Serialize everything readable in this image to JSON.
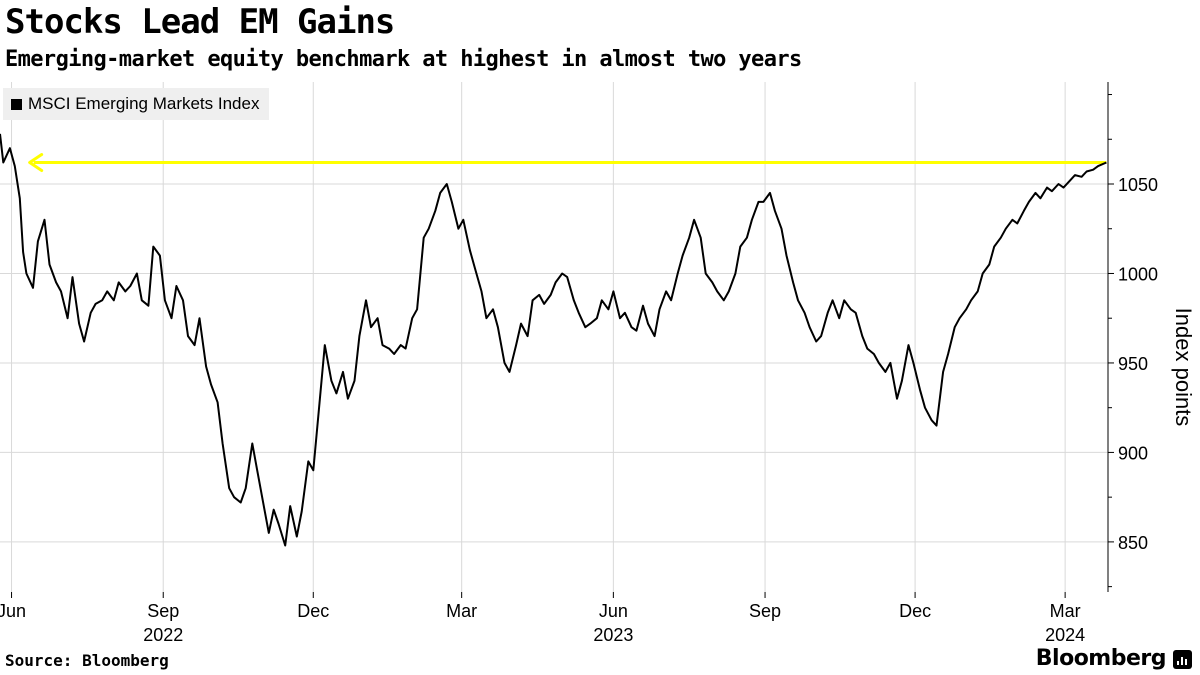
{
  "header": {
    "title": "Stocks Lead EM Gains",
    "subtitle": "Emerging-market equity benchmark at highest in almost two years"
  },
  "footer": {
    "source": "Source: Bloomberg",
    "brand": "Bloomberg"
  },
  "colors": {
    "line": "#000000",
    "annotation": "#ffff00",
    "grid": "#d9d9d9"
  },
  "chart_data": {
    "type": "line",
    "title": "Stocks Lead EM Gains",
    "subtitle": "Emerging-market equity benchmark at highest in almost two years",
    "ylabel": "Index points",
    "xlabel": "",
    "ylim": [
      822,
      1107
    ],
    "yticks": [
      850,
      900,
      950,
      1000,
      1050
    ],
    "x_range": [
      "2022-05-25",
      "2024-03-27"
    ],
    "x_ticks": [
      {
        "date": "2022-06-01",
        "label": "Jun"
      },
      {
        "date": "2022-09-01",
        "label": "Sep"
      },
      {
        "date": "2022-12-01",
        "label": "Dec"
      },
      {
        "date": "2023-03-01",
        "label": "Mar"
      },
      {
        "date": "2023-06-01",
        "label": "Jun"
      },
      {
        "date": "2023-09-01",
        "label": "Sep"
      },
      {
        "date": "2023-12-01",
        "label": "Dec"
      },
      {
        "date": "2024-03-01",
        "label": "Mar"
      }
    ],
    "year_labels": [
      {
        "date": "2022-09-01",
        "label": "2022"
      },
      {
        "date": "2023-06-01",
        "label": "2023"
      },
      {
        "date": "2024-03-01",
        "label": "2024"
      }
    ],
    "legend": [
      "MSCI Emerging Markets Index"
    ],
    "legend_position": "top-left",
    "annotation": {
      "type": "arrow",
      "color": "yellow",
      "value": 1062,
      "direction": "left",
      "from_date": "2024-03-26",
      "to_date": "2022-06-12"
    },
    "series": [
      {
        "name": "MSCI Emerging Markets Index",
        "points": [
          [
            "2022-05-25",
            1078
          ],
          [
            "2022-05-27",
            1062
          ],
          [
            "2022-05-31",
            1070
          ],
          [
            "2022-06-03",
            1060
          ],
          [
            "2022-06-06",
            1042
          ],
          [
            "2022-06-08",
            1012
          ],
          [
            "2022-06-10",
            1000
          ],
          [
            "2022-06-14",
            992
          ],
          [
            "2022-06-17",
            1018
          ],
          [
            "2022-06-21",
            1030
          ],
          [
            "2022-06-24",
            1005
          ],
          [
            "2022-06-28",
            995
          ],
          [
            "2022-07-01",
            990
          ],
          [
            "2022-07-05",
            975
          ],
          [
            "2022-07-08",
            998
          ],
          [
            "2022-07-12",
            972
          ],
          [
            "2022-07-15",
            962
          ],
          [
            "2022-07-19",
            978
          ],
          [
            "2022-07-22",
            983
          ],
          [
            "2022-07-26",
            985
          ],
          [
            "2022-07-29",
            990
          ],
          [
            "2022-08-02",
            985
          ],
          [
            "2022-08-05",
            995
          ],
          [
            "2022-08-09",
            990
          ],
          [
            "2022-08-12",
            993
          ],
          [
            "2022-08-16",
            1000
          ],
          [
            "2022-08-19",
            985
          ],
          [
            "2022-08-23",
            982
          ],
          [
            "2022-08-26",
            1015
          ],
          [
            "2022-08-30",
            1010
          ],
          [
            "2022-09-02",
            985
          ],
          [
            "2022-09-06",
            975
          ],
          [
            "2022-09-09",
            993
          ],
          [
            "2022-09-13",
            985
          ],
          [
            "2022-09-16",
            965
          ],
          [
            "2022-09-20",
            960
          ],
          [
            "2022-09-23",
            975
          ],
          [
            "2022-09-27",
            948
          ],
          [
            "2022-09-30",
            938
          ],
          [
            "2022-10-04",
            928
          ],
          [
            "2022-10-07",
            905
          ],
          [
            "2022-10-11",
            880
          ],
          [
            "2022-10-14",
            875
          ],
          [
            "2022-10-18",
            872
          ],
          [
            "2022-10-21",
            880
          ],
          [
            "2022-10-25",
            905
          ],
          [
            "2022-10-28",
            890
          ],
          [
            "2022-11-01",
            870
          ],
          [
            "2022-11-04",
            855
          ],
          [
            "2022-11-07",
            868
          ],
          [
            "2022-11-10",
            860
          ],
          [
            "2022-11-14",
            848
          ],
          [
            "2022-11-17",
            870
          ],
          [
            "2022-11-21",
            853
          ],
          [
            "2022-11-24",
            867
          ],
          [
            "2022-11-28",
            895
          ],
          [
            "2022-12-01",
            890
          ],
          [
            "2022-12-05",
            930
          ],
          [
            "2022-12-08",
            960
          ],
          [
            "2022-12-12",
            940
          ],
          [
            "2022-12-15",
            933
          ],
          [
            "2022-12-19",
            945
          ],
          [
            "2022-12-22",
            930
          ],
          [
            "2022-12-26",
            940
          ],
          [
            "2022-12-29",
            965
          ],
          [
            "2023-01-02",
            985
          ],
          [
            "2023-01-05",
            970
          ],
          [
            "2023-01-09",
            975
          ],
          [
            "2023-01-12",
            960
          ],
          [
            "2023-01-16",
            958
          ],
          [
            "2023-01-19",
            955
          ],
          [
            "2023-01-23",
            960
          ],
          [
            "2023-01-26",
            958
          ],
          [
            "2023-01-30",
            975
          ],
          [
            "2023-02-02",
            980
          ],
          [
            "2023-02-06",
            1020
          ],
          [
            "2023-02-09",
            1025
          ],
          [
            "2023-02-13",
            1035
          ],
          [
            "2023-02-16",
            1045
          ],
          [
            "2023-02-20",
            1050
          ],
          [
            "2023-02-23",
            1040
          ],
          [
            "2023-02-27",
            1025
          ],
          [
            "2023-03-02",
            1030
          ],
          [
            "2023-03-06",
            1013
          ],
          [
            "2023-03-09",
            1003
          ],
          [
            "2023-03-13",
            990
          ],
          [
            "2023-03-16",
            975
          ],
          [
            "2023-03-20",
            980
          ],
          [
            "2023-03-23",
            970
          ],
          [
            "2023-03-27",
            950
          ],
          [
            "2023-03-30",
            945
          ],
          [
            "2023-04-03",
            960
          ],
          [
            "2023-04-06",
            972
          ],
          [
            "2023-04-10",
            965
          ],
          [
            "2023-04-13",
            985
          ],
          [
            "2023-04-17",
            988
          ],
          [
            "2023-04-20",
            983
          ],
          [
            "2023-04-24",
            988
          ],
          [
            "2023-04-27",
            995
          ],
          [
            "2023-05-01",
            1000
          ],
          [
            "2023-05-04",
            998
          ],
          [
            "2023-05-08",
            985
          ],
          [
            "2023-05-11",
            978
          ],
          [
            "2023-05-15",
            970
          ],
          [
            "2023-05-18",
            972
          ],
          [
            "2023-05-22",
            975
          ],
          [
            "2023-05-25",
            985
          ],
          [
            "2023-05-29",
            980
          ],
          [
            "2023-06-01",
            990
          ],
          [
            "2023-06-05",
            975
          ],
          [
            "2023-06-08",
            978
          ],
          [
            "2023-06-12",
            970
          ],
          [
            "2023-06-15",
            968
          ],
          [
            "2023-06-19",
            982
          ],
          [
            "2023-06-22",
            972
          ],
          [
            "2023-06-26",
            965
          ],
          [
            "2023-06-29",
            980
          ],
          [
            "2023-07-03",
            990
          ],
          [
            "2023-07-06",
            985
          ],
          [
            "2023-07-10",
            1000
          ],
          [
            "2023-07-13",
            1010
          ],
          [
            "2023-07-17",
            1020
          ],
          [
            "2023-07-20",
            1030
          ],
          [
            "2023-07-24",
            1020
          ],
          [
            "2023-07-27",
            1000
          ],
          [
            "2023-07-31",
            995
          ],
          [
            "2023-08-03",
            990
          ],
          [
            "2023-08-07",
            985
          ],
          [
            "2023-08-10",
            990
          ],
          [
            "2023-08-14",
            1000
          ],
          [
            "2023-08-17",
            1015
          ],
          [
            "2023-08-21",
            1020
          ],
          [
            "2023-08-24",
            1030
          ],
          [
            "2023-08-28",
            1040
          ],
          [
            "2023-08-31",
            1040
          ],
          [
            "2023-09-04",
            1045
          ],
          [
            "2023-09-07",
            1035
          ],
          [
            "2023-09-11",
            1025
          ],
          [
            "2023-09-14",
            1010
          ],
          [
            "2023-09-18",
            995
          ],
          [
            "2023-09-21",
            985
          ],
          [
            "2023-09-25",
            978
          ],
          [
            "2023-09-28",
            970
          ],
          [
            "2023-10-02",
            962
          ],
          [
            "2023-10-05",
            965
          ],
          [
            "2023-10-09",
            978
          ],
          [
            "2023-10-12",
            985
          ],
          [
            "2023-10-16",
            975
          ],
          [
            "2023-10-19",
            985
          ],
          [
            "2023-10-23",
            980
          ],
          [
            "2023-10-26",
            978
          ],
          [
            "2023-10-30",
            965
          ],
          [
            "2023-11-02",
            958
          ],
          [
            "2023-11-06",
            955
          ],
          [
            "2023-11-09",
            950
          ],
          [
            "2023-11-13",
            945
          ],
          [
            "2023-11-16",
            950
          ],
          [
            "2023-11-20",
            930
          ],
          [
            "2023-11-23",
            940
          ],
          [
            "2023-11-27",
            960
          ],
          [
            "2023-11-30",
            950
          ],
          [
            "2023-12-04",
            935
          ],
          [
            "2023-12-07",
            925
          ],
          [
            "2023-12-11",
            918
          ],
          [
            "2023-12-14",
            915
          ],
          [
            "2023-12-18",
            945
          ],
          [
            "2023-12-21",
            955
          ],
          [
            "2023-12-25",
            970
          ],
          [
            "2023-12-28",
            975
          ],
          [
            "2024-01-01",
            980
          ],
          [
            "2024-01-04",
            985
          ],
          [
            "2024-01-08",
            990
          ],
          [
            "2024-01-11",
            1000
          ],
          [
            "2024-01-15",
            1005
          ],
          [
            "2024-01-18",
            1015
          ],
          [
            "2024-01-22",
            1020
          ],
          [
            "2024-01-25",
            1025
          ],
          [
            "2024-01-29",
            1030
          ],
          [
            "2024-02-01",
            1028
          ],
          [
            "2024-02-05",
            1035
          ],
          [
            "2024-02-08",
            1040
          ],
          [
            "2024-02-12",
            1045
          ],
          [
            "2024-02-15",
            1042
          ],
          [
            "2024-02-19",
            1048
          ],
          [
            "2024-02-22",
            1046
          ],
          [
            "2024-02-26",
            1050
          ],
          [
            "2024-02-29",
            1048
          ],
          [
            "2024-03-04",
            1052
          ],
          [
            "2024-03-07",
            1055
          ],
          [
            "2024-03-11",
            1054
          ],
          [
            "2024-03-14",
            1057
          ],
          [
            "2024-03-18",
            1058
          ],
          [
            "2024-03-21",
            1060
          ],
          [
            "2024-03-26",
            1062
          ]
        ]
      }
    ]
  }
}
